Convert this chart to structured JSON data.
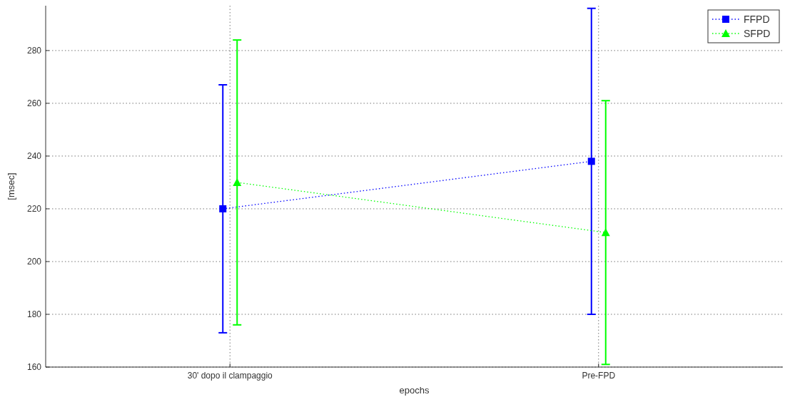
{
  "chart_data": {
    "type": "line",
    "xlabel": "epochs",
    "ylabel": "[msec]",
    "categories": [
      "30' dopo il clampaggio",
      "Pre-FPD"
    ],
    "ylim": [
      160,
      297
    ],
    "yticks": [
      160,
      180,
      200,
      220,
      240,
      260,
      280
    ],
    "grid": true,
    "legend": "top right",
    "line_style": "dotted",
    "series": [
      {
        "name": "FFPD",
        "color": "#0000ff",
        "marker": "square",
        "values": [
          220,
          238
        ],
        "errors": [
          [
            173,
            267
          ],
          [
            180,
            296
          ]
        ]
      },
      {
        "name": "SFPD",
        "color": "#00ff00",
        "marker": "triangle",
        "values": [
          230,
          211
        ],
        "errors": [
          [
            176,
            284
          ],
          [
            161,
            261
          ]
        ]
      }
    ]
  }
}
